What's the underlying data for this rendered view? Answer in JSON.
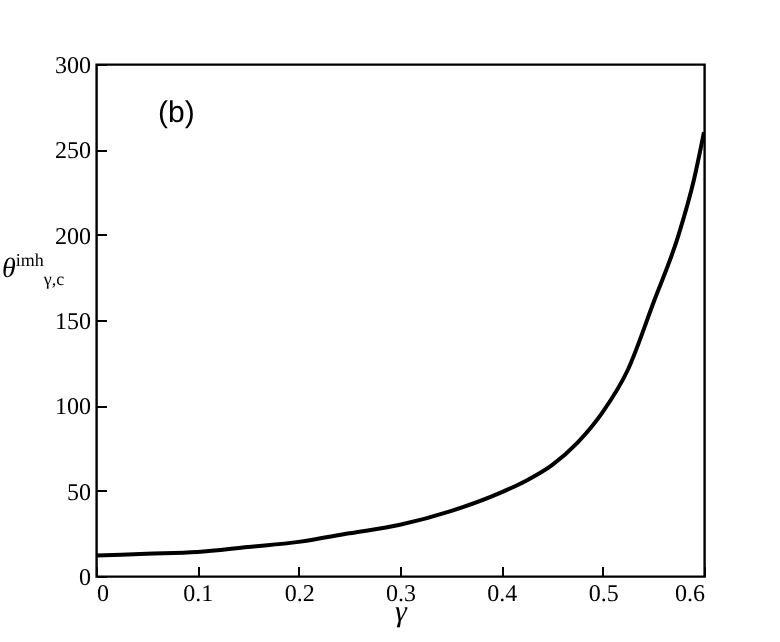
{
  "chart_data": {
    "type": "line",
    "xlabel": "γ",
    "ylabel": "θ$^{imh}$$_{γ,c}$",
    "annotations": [
      "(b)"
    ],
    "x": [
      0,
      0.05,
      0.1,
      0.15,
      0.2,
      0.25,
      0.3,
      0.35,
      0.4,
      0.425,
      0.45,
      0.475,
      0.5,
      0.525,
      0.55,
      0.575,
      0.59,
      0.6
    ],
    "series": [
      {
        "color": "#000000",
        "values": [
          12,
          13,
          14,
          17,
          20,
          25,
          30,
          38,
          49,
          56,
          65,
          78,
          96,
          121,
          160,
          200,
          232,
          260
        ]
      }
    ],
    "xlim": [
      0,
      0.6
    ],
    "ylim": [
      0,
      300
    ],
    "xticks": [
      0,
      0.1,
      0.2,
      0.3,
      0.4,
      0.5,
      0.6
    ],
    "yticks": [
      0,
      50,
      100,
      150,
      200,
      250,
      300
    ],
    "grid": false,
    "line_style": "solid"
  }
}
